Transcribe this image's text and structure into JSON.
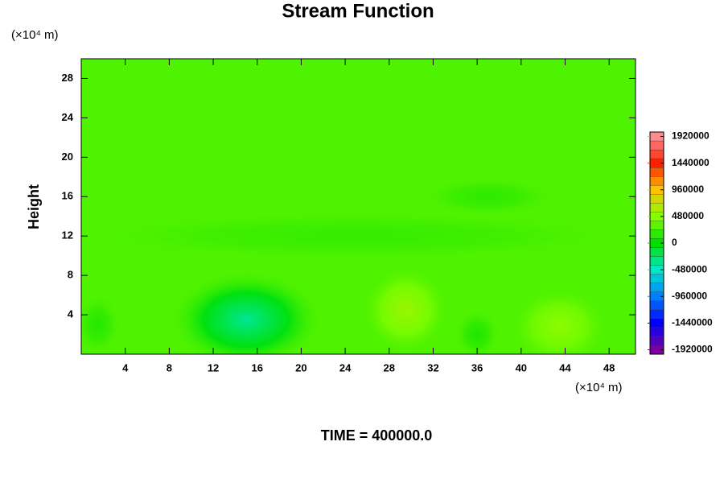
{
  "chart_data": {
    "type": "contour",
    "title": "Stream Function",
    "y_label": "Height",
    "x_unit_label": "(×10⁴ m)",
    "y_unit_label": "(×10⁴ m)",
    "footer": "TIME = 400000.0",
    "xlim": [
      0,
      50.4
    ],
    "xticks": [
      4,
      8,
      12,
      16,
      20,
      24,
      28,
      32,
      36,
      40,
      44,
      48
    ],
    "ylim": [
      0,
      30
    ],
    "yticks": [
      4,
      8,
      12,
      16,
      20,
      24,
      28
    ],
    "clim": [
      -2000000,
      2000000
    ],
    "cticks": [
      1920000,
      1440000,
      960000,
      480000,
      0,
      -480000,
      -960000,
      -1440000,
      -1920000
    ],
    "colormap": [
      [
        -1920000,
        "#7a00a0"
      ],
      [
        -1440000,
        "#0000ff"
      ],
      [
        -960000,
        "#0080ff"
      ],
      [
        -480000,
        "#00e8c8"
      ],
      [
        0,
        "#00e000"
      ],
      [
        480000,
        "#88ff00"
      ],
      [
        960000,
        "#ffc000"
      ],
      [
        1440000,
        "#ff2000"
      ],
      [
        1920000,
        "#ff8c8c"
      ]
    ],
    "background_value": 280000,
    "features": [
      {
        "x": 25,
        "y": 12,
        "rx": 26,
        "ry": 2.5,
        "value": 180000
      },
      {
        "x": 37,
        "y": 16,
        "rx": 6,
        "ry": 2,
        "value": 150000
      },
      {
        "x": 15,
        "y": 3.5,
        "rx": 7,
        "ry": 5,
        "value": -350000
      },
      {
        "x": 29.5,
        "y": 4.5,
        "rx": 4,
        "ry": 4.5,
        "value": 550000
      },
      {
        "x": 43.5,
        "y": 2.8,
        "rx": 4.5,
        "ry": 4,
        "value": 500000
      },
      {
        "x": 36,
        "y": 2,
        "rx": 2,
        "ry": 2.5,
        "value": 100000
      },
      {
        "x": 1.5,
        "y": 3,
        "rx": 2,
        "ry": 3,
        "value": 120000
      }
    ]
  }
}
